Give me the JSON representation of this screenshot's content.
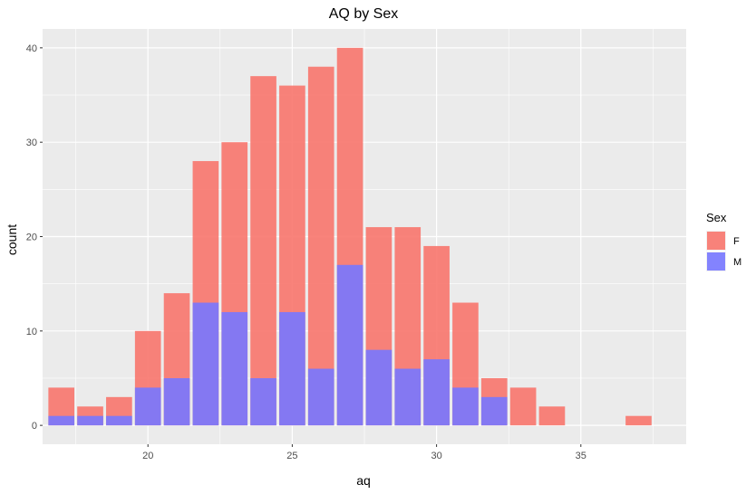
{
  "chart_data": {
    "type": "bar",
    "title": "AQ by Sex",
    "xlabel": "aq",
    "ylabel": "count",
    "x": [
      17,
      18,
      19,
      20,
      21,
      22,
      23,
      24,
      25,
      26,
      27,
      28,
      29,
      30,
      31,
      32,
      33,
      34,
      37
    ],
    "series": [
      {
        "name": "F",
        "color": "#F8766D",
        "values": [
          4,
          2,
          3,
          10,
          14,
          28,
          30,
          37,
          36,
          38,
          40,
          21,
          21,
          19,
          13,
          5,
          4,
          2,
          1
        ]
      },
      {
        "name": "M",
        "color": "#7777FF",
        "values": [
          1,
          1,
          1,
          4,
          5,
          13,
          12,
          5,
          12,
          6,
          17,
          8,
          6,
          7,
          4,
          3,
          0,
          0,
          0
        ]
      }
    ],
    "xlim": [
      16.35,
      38.65
    ],
    "ylim": [
      -2,
      42
    ],
    "xticks": [
      20,
      25,
      30,
      35
    ],
    "yticks": [
      0,
      10,
      20,
      30,
      40
    ],
    "legend": {
      "title": "Sex",
      "position": "right"
    },
    "grid": true,
    "overlay": "identity"
  }
}
